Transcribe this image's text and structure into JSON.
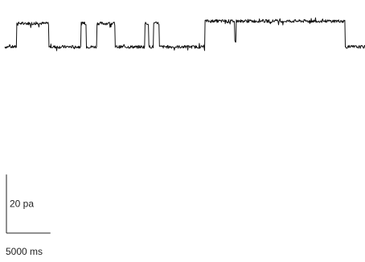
{
  "chart_data": {
    "type": "line",
    "x_unit": "ms",
    "y_unit": "pa",
    "xlim": [
      0,
      45000
    ],
    "ylim": [
      -8,
      40
    ],
    "levels": {
      "closed": 0,
      "open": 20
    },
    "noise_pa": 1.3,
    "spike_pa": 3.2,
    "series": [
      {
        "segments": [
          {
            "start": 0,
            "end": 1500,
            "level": 0
          },
          {
            "start": 1500,
            "end": 5500,
            "level": 20
          },
          {
            "start": 5500,
            "end": 9500,
            "level": 0
          },
          {
            "start": 9500,
            "end": 10200,
            "level": 20
          },
          {
            "start": 10200,
            "end": 11500,
            "level": 0
          },
          {
            "start": 11500,
            "end": 13800,
            "level": 20
          },
          {
            "start": 13800,
            "end": 17500,
            "level": 0
          },
          {
            "start": 17500,
            "end": 18000,
            "level": 20
          },
          {
            "start": 18000,
            "end": 18600,
            "level": 0
          },
          {
            "start": 18600,
            "end": 19300,
            "level": 20
          },
          {
            "start": 19300,
            "end": 25000,
            "level": 0
          },
          {
            "start": 25000,
            "end": 42500,
            "level": 22
          },
          {
            "start": 42500,
            "end": 45000,
            "level": 0
          }
        ],
        "dips": [
          {
            "x": 28800,
            "value": 5
          }
        ]
      }
    ],
    "scale_bar": {
      "y_value": 20,
      "y_label": "20 pa",
      "x_value": 5000,
      "x_label": "5000 ms"
    }
  }
}
